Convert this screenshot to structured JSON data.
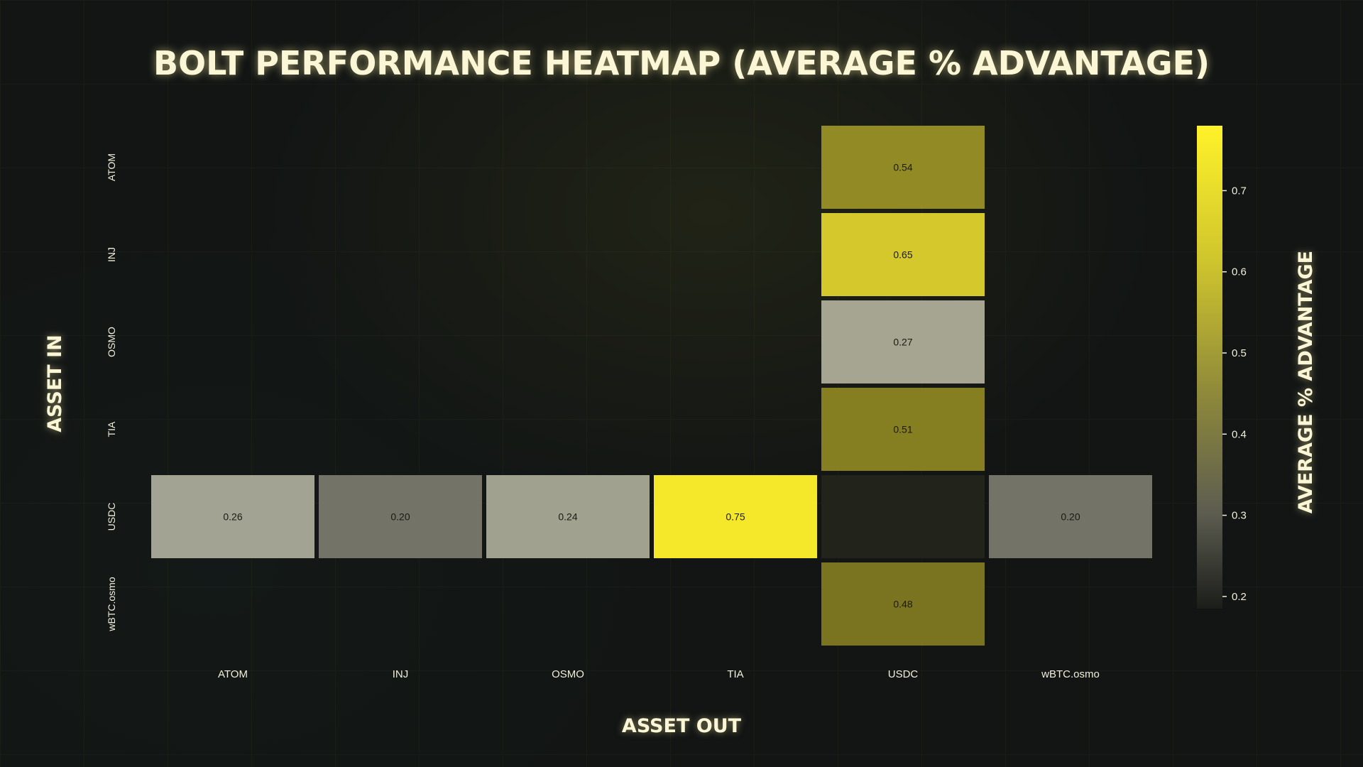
{
  "chart_data": {
    "type": "heatmap",
    "title": "BOLT PERFORMANCE HEATMAP (AVERAGE % ADVANTAGE)",
    "xlabel": "ASSET OUT",
    "ylabel": "ASSET IN",
    "x_categories": [
      "ATOM",
      "INJ",
      "OSMO",
      "TIA",
      "USDC",
      "wBTC.osmo"
    ],
    "y_categories": [
      "ATOM",
      "INJ",
      "OSMO",
      "TIA",
      "USDC",
      "wBTC.osmo"
    ],
    "cells": [
      {
        "in": "ATOM",
        "out": "USDC",
        "value": 0.54,
        "label": "0.54"
      },
      {
        "in": "INJ",
        "out": "USDC",
        "value": 0.65,
        "label": "0.65"
      },
      {
        "in": "OSMO",
        "out": "USDC",
        "value": 0.27,
        "label": "0.27"
      },
      {
        "in": "TIA",
        "out": "USDC",
        "value": 0.51,
        "label": "0.51"
      },
      {
        "in": "USDC",
        "out": "ATOM",
        "value": 0.26,
        "label": "0.26"
      },
      {
        "in": "USDC",
        "out": "INJ",
        "value": 0.2,
        "label": "0.20"
      },
      {
        "in": "USDC",
        "out": "OSMO",
        "value": 0.24,
        "label": "0.24"
      },
      {
        "in": "USDC",
        "out": "TIA",
        "value": 0.75,
        "label": "0.75"
      },
      {
        "in": "USDC",
        "out": "wBTC.osmo",
        "value": 0.2,
        "label": "0.20"
      },
      {
        "in": "wBTC.osmo",
        "out": "USDC",
        "value": 0.48,
        "label": "0.48"
      }
    ],
    "colorbar": {
      "label": "AVERAGE % ADVANTAGE",
      "min": 0.185,
      "max": 0.78,
      "ticks": [
        "0.2",
        "0.3",
        "0.4",
        "0.5",
        "0.6",
        "0.7"
      ]
    }
  }
}
